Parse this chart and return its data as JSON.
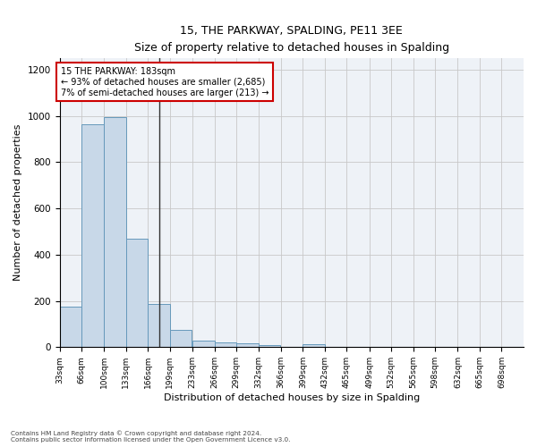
{
  "title": "15, THE PARKWAY, SPALDING, PE11 3EE",
  "subtitle": "Size of property relative to detached houses in Spalding",
  "xlabel": "Distribution of detached houses by size in Spalding",
  "ylabel": "Number of detached properties",
  "property_size": 183,
  "annotation_line1": "15 THE PARKWAY: 183sqm",
  "annotation_line2": "← 93% of detached houses are smaller (2,685)",
  "annotation_line3": "7% of semi-detached houses are larger (213) →",
  "bin_edges": [
    33,
    66,
    100,
    133,
    166,
    199,
    233,
    266,
    299,
    332,
    366,
    399,
    432,
    465,
    499,
    532,
    565,
    598,
    632,
    665,
    698
  ],
  "bar_heights": [
    175,
    965,
    995,
    470,
    185,
    75,
    28,
    22,
    15,
    10,
    0,
    12,
    0,
    0,
    0,
    0,
    0,
    0,
    0,
    0
  ],
  "bar_color": "#c8d8e8",
  "bar_edge_color": "#6699bb",
  "grid_color": "#c8c8c8",
  "background_color": "#eef2f7",
  "annotation_box_color": "#ffffff",
  "annotation_box_edge": "#cc0000",
  "property_line_color": "#333333",
  "ylim": [
    0,
    1250
  ],
  "yticks": [
    0,
    200,
    400,
    600,
    800,
    1000,
    1200
  ],
  "footer_line1": "Contains HM Land Registry data © Crown copyright and database right 2024.",
  "footer_line2": "Contains public sector information licensed under the Open Government Licence v3.0."
}
